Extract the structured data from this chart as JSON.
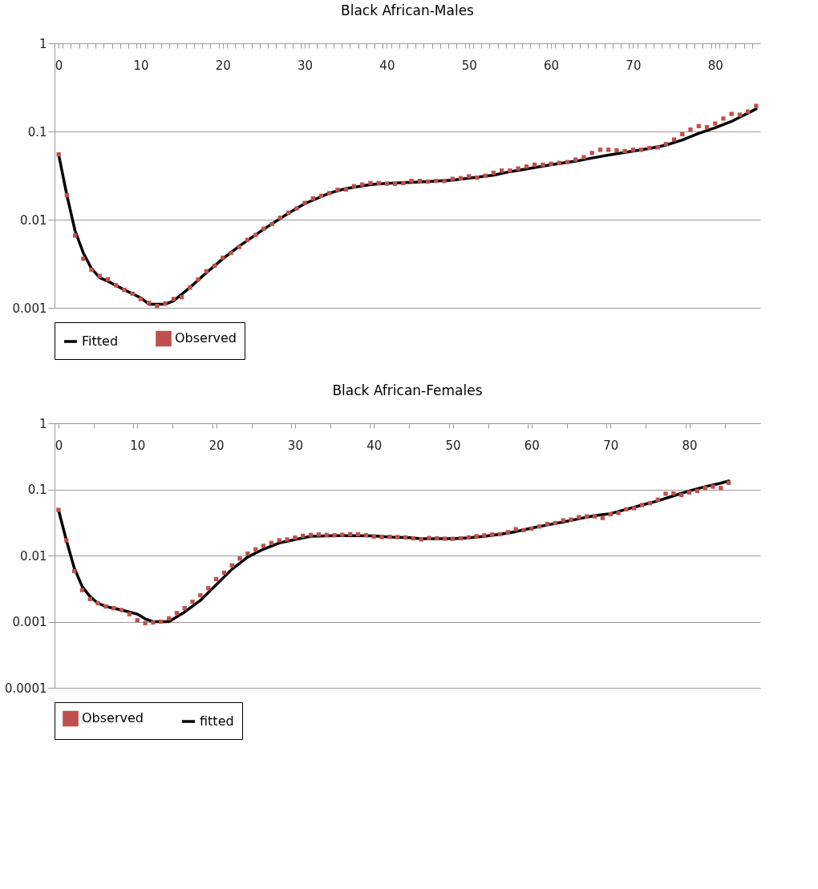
{
  "chart_data": [
    {
      "type": "line",
      "title": "Black African-Males",
      "log": true,
      "grid": "y",
      "legend": "bottom",
      "xlim": [
        -0.5,
        85.5
      ],
      "ylim": [
        0.001,
        1
      ],
      "xticks": [
        0,
        10,
        20,
        30,
        40,
        50,
        60,
        70,
        80,
        {
          "value": 0.5,
          "label": null
        },
        {
          "value": 1.5,
          "label": null
        },
        {
          "value": 2.5,
          "label": null
        },
        {
          "value": 3.5,
          "label": null
        },
        {
          "value": 4.5,
          "label": null
        },
        {
          "value": 5.5,
          "label": null
        },
        {
          "value": 6.5,
          "label": null
        },
        {
          "value": 7.5,
          "label": null
        },
        {
          "value": 8.5,
          "label": null
        },
        {
          "value": 9.5,
          "label": null
        },
        {
          "value": 10.5,
          "label": null
        },
        {
          "value": 11.5,
          "label": null
        },
        {
          "value": 12.5,
          "label": null
        },
        {
          "value": 13.5,
          "label": null
        },
        {
          "value": 14.5,
          "label": null
        },
        {
          "value": 15.5,
          "label": null
        },
        {
          "value": 16.5,
          "label": null
        },
        {
          "value": 17.5,
          "label": null
        },
        {
          "value": 18.5,
          "label": null
        },
        {
          "value": 19.5,
          "label": null
        },
        {
          "value": 20.5,
          "label": null
        },
        {
          "value": 21.5,
          "label": null
        },
        {
          "value": 22.5,
          "label": null
        },
        {
          "value": 23.5,
          "label": null
        },
        {
          "value": 24.5,
          "label": null
        },
        {
          "value": 25.5,
          "label": null
        },
        {
          "value": 26.5,
          "label": null
        },
        {
          "value": 27.5,
          "label": null
        },
        {
          "value": 28.5,
          "label": null
        },
        {
          "value": 29.5,
          "label": null
        },
        {
          "value": 30.5,
          "label": null
        },
        {
          "value": 31.5,
          "label": null
        },
        {
          "value": 32.5,
          "label": null
        },
        {
          "value": 33.5,
          "label": null
        },
        {
          "value": 34.5,
          "label": null
        },
        {
          "value": 35.5,
          "label": null
        },
        {
          "value": 36.5,
          "label": null
        },
        {
          "value": 37.5,
          "label": null
        },
        {
          "value": 38.5,
          "label": null
        },
        {
          "value": 39.5,
          "label": null
        },
        {
          "value": 40.5,
          "label": null
        },
        {
          "value": 41.5,
          "label": null
        },
        {
          "value": 42.5,
          "label": null
        },
        {
          "value": 43.5,
          "label": null
        },
        {
          "value": 44.5,
          "label": null
        },
        {
          "value": 45.5,
          "label": null
        },
        {
          "value": 46.5,
          "label": null
        },
        {
          "value": 47.5,
          "label": null
        },
        {
          "value": 48.5,
          "label": null
        },
        {
          "value": 49.5,
          "label": null
        },
        {
          "value": 50.5,
          "label": null
        },
        {
          "value": 51.5,
          "label": null
        },
        {
          "value": 52.5,
          "label": null
        },
        {
          "value": 53.5,
          "label": null
        },
        {
          "value": 54.5,
          "label": null
        },
        {
          "value": 55.5,
          "label": null
        },
        {
          "value": 56.5,
          "label": null
        },
        {
          "value": 57.5,
          "label": null
        },
        {
          "value": 58.5,
          "label": null
        },
        {
          "value": 59.5,
          "label": null
        },
        {
          "value": 60.5,
          "label": null
        },
        {
          "value": 61.5,
          "label": null
        },
        {
          "value": 62.5,
          "label": null
        },
        {
          "value": 63.5,
          "label": null
        },
        {
          "value": 64.5,
          "label": null
        },
        {
          "value": 65.5,
          "label": null
        },
        {
          "value": 66.5,
          "label": null
        },
        {
          "value": 67.5,
          "label": null
        },
        {
          "value": 68.5,
          "label": null
        },
        {
          "value": 69.5,
          "label": null
        },
        {
          "value": 70.5,
          "label": null
        },
        {
          "value": 71.5,
          "label": null
        },
        {
          "value": 72.5,
          "label": null
        },
        {
          "value": 73.5,
          "label": null
        },
        {
          "value": 74.5,
          "label": null
        },
        {
          "value": 75.5,
          "label": null
        },
        {
          "value": 76.5,
          "label": null
        },
        {
          "value": 77.5,
          "label": null
        },
        {
          "value": 78.5,
          "label": null
        },
        {
          "value": 79.5,
          "label": null
        },
        {
          "value": 80.5,
          "label": null
        },
        {
          "value": 81.5,
          "label": null
        },
        {
          "value": 82.5,
          "label": null
        },
        {
          "value": 83.5,
          "label": null
        },
        {
          "value": 84.5,
          "label": null
        }
      ],
      "yticks": [
        0.001,
        0.01,
        0.1,
        1
      ],
      "series": [
        {
          "name": "Fitted",
          "type": "line",
          "color": "#000000",
          "marker": "none",
          "line_style": "solid",
          "x": [
            0,
            1,
            2,
            3,
            4,
            5,
            6,
            8,
            10,
            11,
            12,
            13,
            14,
            16,
            18,
            20,
            22,
            25,
            28,
            30,
            33,
            35,
            38,
            40,
            43,
            45,
            48,
            50,
            53,
            55,
            58,
            60,
            63,
            65,
            68,
            70,
            72,
            74,
            76,
            78,
            80,
            82,
            85
          ],
          "values": [
            0.055,
            0.019,
            0.0075,
            0.0042,
            0.0028,
            0.0022,
            0.002,
            0.0016,
            0.0013,
            0.0011,
            0.0011,
            0.0011,
            0.0012,
            0.0017,
            0.0025,
            0.0036,
            0.005,
            0.0078,
            0.0118,
            0.0152,
            0.02,
            0.0225,
            0.025,
            0.0258,
            0.0265,
            0.027,
            0.028,
            0.0295,
            0.032,
            0.035,
            0.039,
            0.042,
            0.046,
            0.05,
            0.056,
            0.06,
            0.064,
            0.07,
            0.08,
            0.095,
            0.11,
            0.13,
            0.18
          ]
        },
        {
          "name": "Observed",
          "type": "scatter",
          "color": "#c0504d",
          "marker": "square",
          "x": [
            0,
            1,
            2,
            3,
            4,
            5,
            6,
            7,
            8,
            9,
            10,
            11,
            12,
            13,
            14,
            15,
            16,
            17,
            18,
            19,
            20,
            21,
            22,
            23,
            24,
            25,
            26,
            27,
            28,
            29,
            30,
            31,
            32,
            33,
            34,
            35,
            36,
            37,
            38,
            39,
            40,
            41,
            42,
            43,
            44,
            45,
            46,
            47,
            48,
            49,
            50,
            51,
            52,
            53,
            54,
            55,
            56,
            57,
            58,
            59,
            60,
            61,
            62,
            63,
            64,
            65,
            66,
            67,
            68,
            69,
            70,
            71,
            72,
            73,
            74,
            75,
            76,
            77,
            78,
            79,
            80,
            81,
            82,
            83,
            84,
            85
          ],
          "values": [
            0.055,
            0.019,
            0.0066,
            0.0036,
            0.0027,
            0.0023,
            0.0021,
            0.0018,
            0.0016,
            0.00145,
            0.00126,
            0.00114,
            0.00105,
            0.00112,
            0.00126,
            0.00132,
            0.0017,
            0.0021,
            0.0026,
            0.003,
            0.0037,
            0.0042,
            0.0049,
            0.0059,
            0.0067,
            0.0079,
            0.0089,
            0.0105,
            0.012,
            0.0134,
            0.0155,
            0.0174,
            0.0186,
            0.02,
            0.0218,
            0.022,
            0.024,
            0.025,
            0.026,
            0.026,
            0.0256,
            0.0255,
            0.026,
            0.0275,
            0.0275,
            0.027,
            0.0275,
            0.0275,
            0.029,
            0.0295,
            0.031,
            0.03,
            0.0315,
            0.034,
            0.036,
            0.036,
            0.038,
            0.04,
            0.042,
            0.042,
            0.043,
            0.044,
            0.045,
            0.048,
            0.051,
            0.057,
            0.062,
            0.062,
            0.061,
            0.06,
            0.062,
            0.062,
            0.065,
            0.066,
            0.072,
            0.081,
            0.093,
            0.105,
            0.115,
            0.112,
            0.123,
            0.14,
            0.158,
            0.155,
            0.168,
            0.195
          ]
        }
      ]
    },
    {
      "type": "line",
      "title": "Black African-Females",
      "log": true,
      "grid": "y",
      "legend": "bottom",
      "xlim": [
        -0.5,
        89
      ],
      "ylim": [
        0.0001,
        1
      ],
      "xticks": [
        0,
        10,
        20,
        30,
        40,
        50,
        60,
        70,
        80,
        {
          "value": -0.5,
          "label": null
        },
        {
          "value": 4.5,
          "label": null
        },
        {
          "value": 9.5,
          "label": null
        },
        {
          "value": 14.5,
          "label": null
        },
        {
          "value": 19.5,
          "label": null
        },
        {
          "value": 24.5,
          "label": null
        },
        {
          "value": 29.5,
          "label": null
        },
        {
          "value": 34.5,
          "label": null
        },
        {
          "value": 39.5,
          "label": null
        },
        {
          "value": 44.5,
          "label": null
        },
        {
          "value": 49.5,
          "label": null
        },
        {
          "value": 54.5,
          "label": null
        },
        {
          "value": 59.5,
          "label": null
        },
        {
          "value": 64.5,
          "label": null
        },
        {
          "value": 69.5,
          "label": null
        },
        {
          "value": 74.5,
          "label": null
        },
        {
          "value": 79.5,
          "label": null
        },
        {
          "value": 84.5,
          "label": null
        }
      ],
      "yticks": [
        0.0001,
        0.001,
        0.01,
        0.1,
        1
      ],
      "series": [
        {
          "name": "Observed",
          "type": "scatter",
          "color": "#c0504d",
          "marker": "square",
          "x": [
            0,
            1,
            2,
            3,
            4,
            5,
            6,
            7,
            8,
            9,
            10,
            11,
            12,
            13,
            14,
            15,
            16,
            17,
            18,
            19,
            20,
            21,
            22,
            23,
            24,
            25,
            26,
            27,
            28,
            29,
            30,
            31,
            32,
            33,
            34,
            35,
            36,
            37,
            38,
            39,
            40,
            41,
            42,
            43,
            44,
            45,
            46,
            47,
            48,
            49,
            50,
            51,
            52,
            53,
            54,
            55,
            56,
            57,
            58,
            59,
            60,
            61,
            62,
            63,
            64,
            65,
            66,
            67,
            68,
            69,
            70,
            71,
            72,
            73,
            74,
            75,
            76,
            77,
            78,
            79,
            80,
            81,
            82,
            83,
            84,
            85
          ],
          "values": [
            0.049,
            0.017,
            0.0058,
            0.003,
            0.0022,
            0.0019,
            0.0017,
            0.0016,
            0.0015,
            0.0013,
            0.00105,
            0.00095,
            0.00097,
            0.001,
            0.00112,
            0.00135,
            0.0016,
            0.002,
            0.0025,
            0.0032,
            0.0044,
            0.0055,
            0.0071,
            0.009,
            0.0107,
            0.0124,
            0.014,
            0.0155,
            0.017,
            0.0175,
            0.0187,
            0.0199,
            0.0205,
            0.0208,
            0.0205,
            0.0202,
            0.0206,
            0.021,
            0.021,
            0.0203,
            0.0194,
            0.019,
            0.0192,
            0.019,
            0.0188,
            0.0182,
            0.0176,
            0.0184,
            0.0182,
            0.018,
            0.0179,
            0.0182,
            0.0188,
            0.0196,
            0.0202,
            0.0208,
            0.021,
            0.0226,
            0.025,
            0.0242,
            0.0255,
            0.0275,
            0.03,
            0.031,
            0.034,
            0.035,
            0.038,
            0.039,
            0.039,
            0.037,
            0.042,
            0.044,
            0.05,
            0.052,
            0.058,
            0.062,
            0.07,
            0.086,
            0.087,
            0.082,
            0.09,
            0.095,
            0.105,
            0.11,
            0.105,
            0.126
          ]
        },
        {
          "name": "fitted",
          "type": "line",
          "color": "#000000",
          "marker": "none",
          "line_style": "solid",
          "x": [
            0,
            1,
            2,
            3,
            4,
            5,
            6,
            8,
            9,
            10,
            11,
            12,
            13,
            14,
            16,
            18,
            20,
            22,
            24,
            26,
            28,
            30,
            32,
            35,
            38,
            40,
            42,
            44,
            46,
            48,
            50,
            52,
            54,
            56,
            58,
            60,
            62,
            64,
            66,
            68,
            70,
            72,
            74,
            76,
            78,
            80,
            82,
            84,
            85
          ],
          "values": [
            0.049,
            0.017,
            0.0065,
            0.0034,
            0.0024,
            0.0019,
            0.0017,
            0.0015,
            0.0014,
            0.0013,
            0.0011,
            0.001,
            0.001,
            0.001,
            0.0014,
            0.0021,
            0.0036,
            0.0062,
            0.0095,
            0.0125,
            0.0155,
            0.0175,
            0.0195,
            0.02,
            0.02,
            0.0198,
            0.019,
            0.0188,
            0.018,
            0.018,
            0.018,
            0.0185,
            0.0195,
            0.021,
            0.023,
            0.026,
            0.029,
            0.032,
            0.036,
            0.04,
            0.043,
            0.05,
            0.058,
            0.067,
            0.08,
            0.095,
            0.11,
            0.124,
            0.134
          ]
        }
      ]
    }
  ]
}
